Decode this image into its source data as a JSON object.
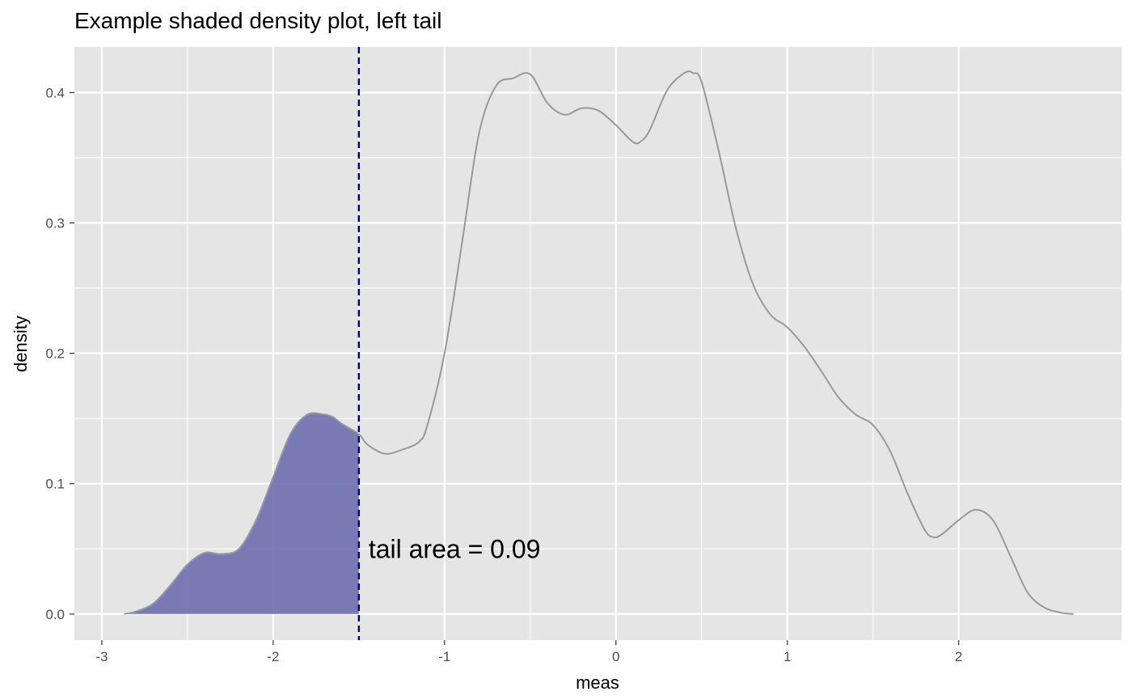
{
  "chart_data": {
    "type": "area",
    "title": "Example shaded density plot, left tail",
    "xlabel": "meas",
    "ylabel": "density",
    "xlim": [
      -3.16,
      2.95
    ],
    "ylim": [
      -0.02,
      0.435
    ],
    "x_ticks": [
      -3,
      -2,
      -1,
      0,
      1,
      2
    ],
    "x_tick_labels": [
      "-3",
      "-2",
      "-1",
      "0",
      "1",
      "2"
    ],
    "y_ticks": [
      0.0,
      0.1,
      0.2,
      0.3,
      0.4
    ],
    "y_tick_labels": [
      "0.0",
      "0.1",
      "0.2",
      "0.3",
      "0.4"
    ],
    "grid": true,
    "threshold": -1.5,
    "annotation": "tail area =  0.09",
    "colors": {
      "panel_bg": "#e5e5e5",
      "grid": "#ffffff",
      "curve": "#999999",
      "tail_fill": "#6666aa",
      "threshold_line": "#000080"
    },
    "series": [
      {
        "x": [
          -2.87,
          -2.8,
          -2.7,
          -2.6,
          -2.5,
          -2.4,
          -2.3,
          -2.2,
          -2.1,
          -2.0,
          -1.9,
          -1.8,
          -1.7,
          -1.65,
          -1.6,
          -1.5,
          -1.45,
          -1.35,
          -1.25,
          -1.15,
          -1.1,
          -1.0,
          -0.9,
          -0.8,
          -0.7,
          -0.6,
          -0.5,
          -0.4,
          -0.3,
          -0.2,
          -0.1,
          0.0,
          0.1,
          0.15,
          0.2,
          0.3,
          0.4,
          0.45,
          0.5,
          0.6,
          0.7,
          0.8,
          0.9,
          1.0,
          1.1,
          1.2,
          1.3,
          1.4,
          1.5,
          1.6,
          1.7,
          1.8,
          1.85,
          1.9,
          2.0,
          2.1,
          2.2,
          2.3,
          2.4,
          2.5,
          2.6,
          2.67
        ],
        "y": [
          0.0,
          0.002,
          0.008,
          0.022,
          0.038,
          0.047,
          0.046,
          0.05,
          0.072,
          0.105,
          0.138,
          0.153,
          0.153,
          0.151,
          0.146,
          0.138,
          0.13,
          0.123,
          0.126,
          0.132,
          0.145,
          0.2,
          0.283,
          0.368,
          0.405,
          0.411,
          0.414,
          0.392,
          0.383,
          0.388,
          0.386,
          0.375,
          0.362,
          0.363,
          0.372,
          0.402,
          0.415,
          0.415,
          0.408,
          0.355,
          0.296,
          0.253,
          0.23,
          0.22,
          0.205,
          0.186,
          0.166,
          0.153,
          0.145,
          0.125,
          0.093,
          0.065,
          0.059,
          0.061,
          0.072,
          0.08,
          0.072,
          0.045,
          0.017,
          0.005,
          0.001,
          0.0
        ]
      }
    ]
  }
}
